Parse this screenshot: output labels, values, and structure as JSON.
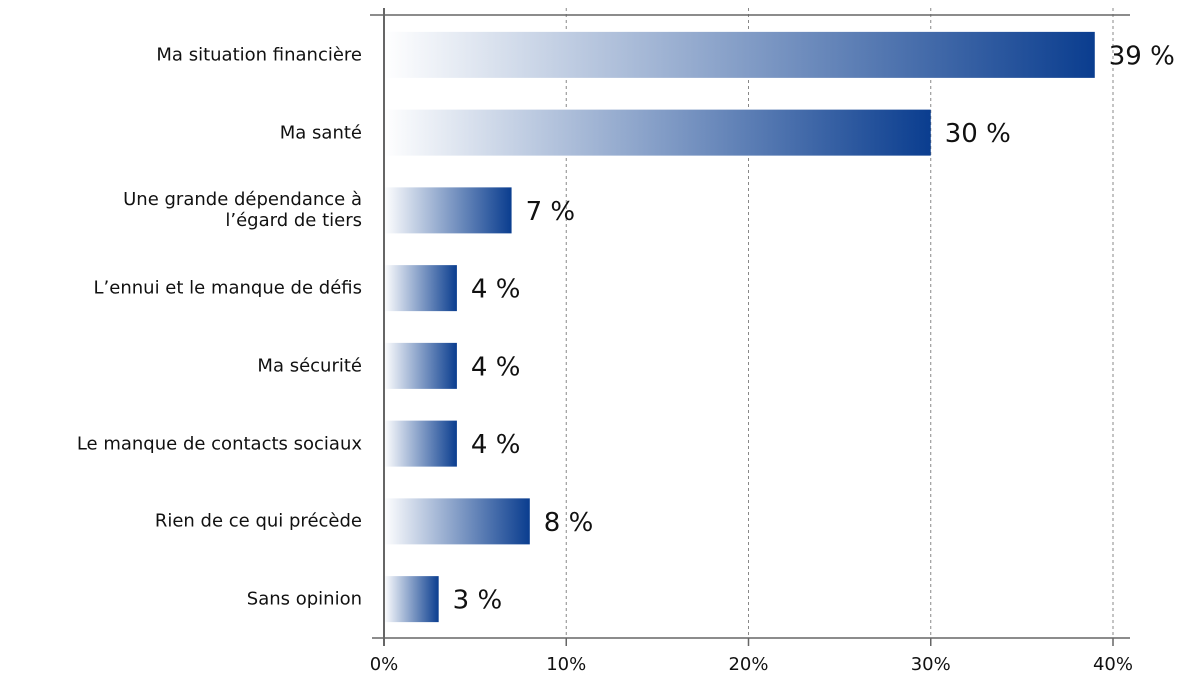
{
  "chart_data": {
    "type": "hbar",
    "categories": [
      "Ma situation financière",
      "Ma santé",
      "Une grande dépendance à\nl’égard de tiers",
      "L’ennui et le manque de défis",
      "Ma sécurité",
      "Le manque de contacts sociaux",
      "Rien de ce qui précède",
      "Sans opinion"
    ],
    "values": [
      39,
      30,
      7,
      4,
      4,
      4,
      8,
      3
    ],
    "value_labels": [
      "39 %",
      "30 %",
      "7 %",
      "4 %",
      "4 %",
      "4 %",
      "8 %",
      "3 %"
    ],
    "color": "#0a3d8f",
    "xlim": [
      0,
      40
    ],
    "xticks": [
      {
        "value": 0,
        "label": "0%"
      },
      {
        "value": 10,
        "label": "10%"
      },
      {
        "value": 20,
        "label": "20%"
      },
      {
        "value": 30,
        "label": "30%"
      },
      {
        "value": 40,
        "label": "40%"
      }
    ],
    "grid": true
  }
}
